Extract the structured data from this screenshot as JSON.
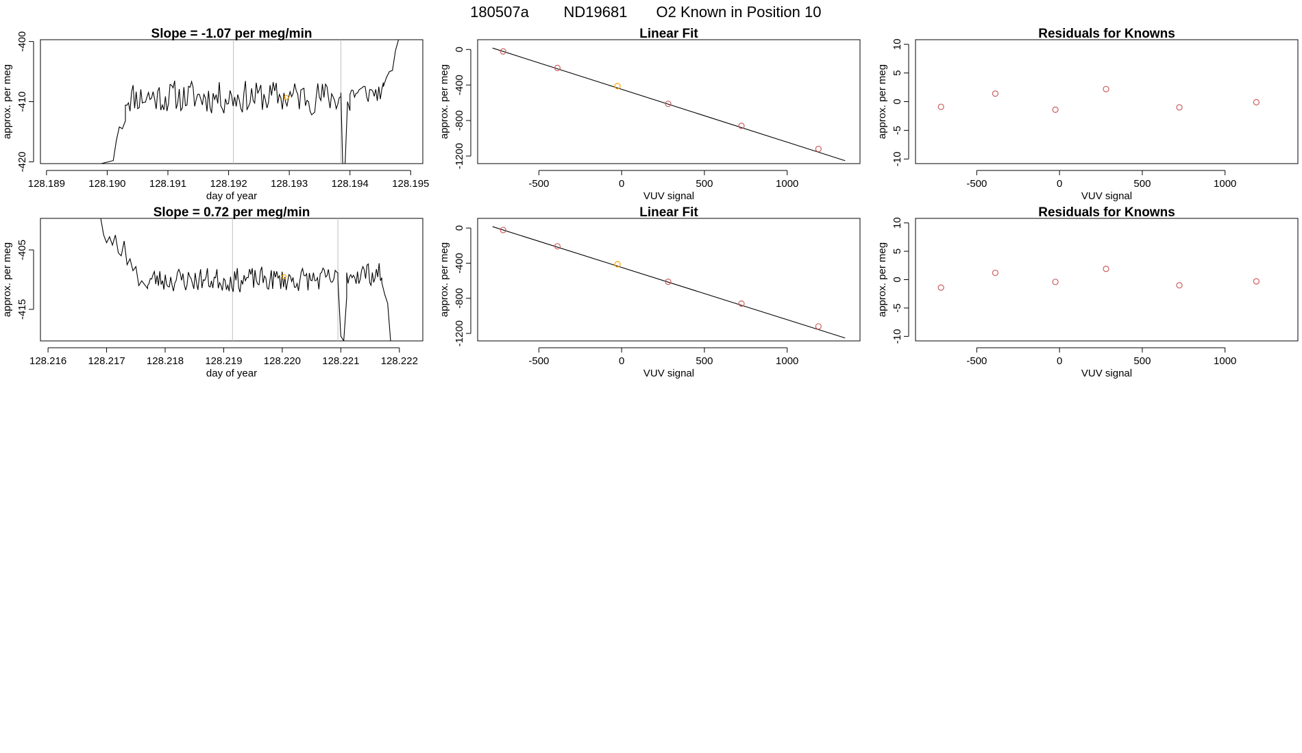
{
  "page_title": {
    "run_id": "180507a",
    "tank_id": "ND19681",
    "description": "O2 Known in Position  10"
  },
  "colors": {
    "line": "#000000",
    "known_point": "#cd5c5c",
    "highlight_point": "#ffa500",
    "vertical_marker": "#bebebe",
    "frame": "#000000"
  },
  "chart_data": [
    {
      "id": "slope-top",
      "type": "line",
      "title": "Slope =  -1.07  per meg/min",
      "xlabel": "day of year",
      "ylabel": "approx. per meg",
      "xlim": [
        128.1889,
        128.1952
      ],
      "ylim": [
        -420.3,
        -399.7
      ],
      "xticks": [
        128.189,
        128.19,
        128.191,
        128.192,
        128.193,
        128.194,
        128.195
      ],
      "xtick_labels": [
        "128.189",
        "128.190",
        "128.191",
        "128.192",
        "128.193",
        "128.194",
        "128.195"
      ],
      "yticks": [
        -400,
        -410,
        -420
      ],
      "ytick_labels": [
        "-400",
        "-410",
        "-420"
      ],
      "vlines": [
        128.19208,
        128.19385
      ],
      "highlight": {
        "x": 128.19295,
        "y": -409.3
      },
      "line_seed": 11,
      "segments": [
        {
          "x": [
            128.1889,
            128.1899
          ],
          "y": [
            -420.3,
            -420.3
          ]
        },
        {
          "x": [
            128.1899,
            128.1901,
            128.19015,
            128.1902,
            128.19025,
            128.1903
          ],
          "y": [
            -420.3,
            -419.8,
            -416.5,
            -414.2,
            -414.5,
            -413.2
          ]
        },
        {
          "gen": true,
          "x0": 128.1903,
          "x1": 128.19385,
          "n": 140,
          "mean": -409.2,
          "amp": 3.1
        },
        {
          "x": [
            128.19385,
            128.19388,
            128.19392,
            128.19396,
            128.194
          ],
          "y": [
            -408.5,
            -420.3,
            -420.3,
            -410.0,
            -411.5
          ]
        },
        {
          "gen": true,
          "x0": 128.194,
          "x1": 128.19455,
          "n": 22,
          "mean": -408.5,
          "amp": 2.0
        },
        {
          "x": [
            128.19455,
            128.1946,
            128.19465,
            128.1947,
            128.19475,
            128.1948
          ],
          "y": [
            -407.5,
            -406.0,
            -405.0,
            -404.8,
            -401.5,
            -399.7
          ]
        }
      ]
    },
    {
      "id": "linear-top",
      "type": "scatter",
      "title": "Linear Fit",
      "xlabel": "VUV signal",
      "ylabel": "approx. per meg",
      "xlim": [
        -870,
        1440
      ],
      "ylim": [
        -1285,
        110
      ],
      "xticks": [
        -500,
        0,
        500,
        1000
      ],
      "xtick_labels": [
        "-500",
        "0",
        "500",
        "1000"
      ],
      "yticks": [
        0,
        -400,
        -800,
        -1200
      ],
      "ytick_labels": [
        "0",
        "-400",
        "-800",
        "-1200"
      ],
      "fit_line": {
        "x": [
          -780,
          1350
        ],
        "y": [
          16,
          -1252
        ]
      },
      "points": [
        {
          "x": -716,
          "y": -22,
          "color": "known"
        },
        {
          "x": -388,
          "y": -208,
          "color": "known"
        },
        {
          "x": -25,
          "y": -412,
          "color": "highlight"
        },
        {
          "x": 281,
          "y": -612,
          "color": "known"
        },
        {
          "x": 724,
          "y": -860,
          "color": "known"
        },
        {
          "x": 1189,
          "y": -1120,
          "color": "known"
        }
      ]
    },
    {
      "id": "resid-top",
      "type": "scatter",
      "title": "Residuals for Knowns",
      "xlabel": "VUV signal",
      "ylabel": "approx. per meg",
      "xlim": [
        -870,
        1440
      ],
      "ylim": [
        -10.8,
        10.8
      ],
      "xticks": [
        -500,
        0,
        500,
        1000
      ],
      "xtick_labels": [
        "-500",
        "0",
        "500",
        "1000"
      ],
      "yticks": [
        10,
        5,
        0,
        -5,
        -10
      ],
      "ytick_labels": [
        "10",
        "5",
        "0",
        "-5",
        "-10"
      ],
      "points": [
        {
          "x": -716,
          "y": -0.9,
          "color": "known"
        },
        {
          "x": -388,
          "y": 1.4,
          "color": "known"
        },
        {
          "x": -25,
          "y": -1.4,
          "color": "known"
        },
        {
          "x": 281,
          "y": 2.2,
          "color": "known"
        },
        {
          "x": 724,
          "y": -1.0,
          "color": "known"
        },
        {
          "x": 1189,
          "y": -0.1,
          "color": "known"
        }
      ]
    },
    {
      "id": "slope-bottom",
      "type": "line",
      "title": "Slope =  0.72  per meg/min",
      "xlabel": "day of year",
      "ylabel": "approx. per meg",
      "xlim": [
        128.21587,
        128.2224
      ],
      "ylim": [
        -420.3,
        -399.7
      ],
      "xticks": [
        128.216,
        128.217,
        128.218,
        128.219,
        128.22,
        128.221,
        128.222
      ],
      "xtick_labels": [
        "128.216",
        "128.217",
        "128.218",
        "128.219",
        "128.220",
        "128.221",
        "128.222"
      ],
      "yticks": [
        -405,
        -415
      ],
      "ytick_labels": [
        "-405",
        "-415"
      ],
      "vlines": [
        128.21915,
        128.22095
      ],
      "highlight": {
        "x": 128.22003,
        "y": -409.5
      },
      "line_seed": 23,
      "segments": [
        {
          "x": [
            128.2169,
            128.21695,
            128.217,
            128.21705,
            128.2171,
            128.21715,
            128.2172,
            128.21725,
            128.2173,
            128.21735,
            128.2174,
            128.21745,
            128.2175,
            128.21755,
            128.2176,
            128.2177
          ],
          "y": [
            -399.7,
            -402.5,
            -403.8,
            -402.8,
            -404.2,
            -402.5,
            -405.5,
            -406.0,
            -403.5,
            -407.5,
            -406.5,
            -408.5,
            -407.8,
            -411.0,
            -410.2,
            -411.5
          ]
        },
        {
          "gen": true,
          "x0": 128.2177,
          "x1": 128.22095,
          "n": 140,
          "mean": -410.0,
          "amp": 2.3
        },
        {
          "x": [
            128.22095,
            128.221,
            128.22105,
            128.2211
          ],
          "y": [
            -410.0,
            -419.5,
            -420.3,
            -413.0
          ]
        },
        {
          "gen": true,
          "x0": 128.2211,
          "x1": 128.2217,
          "n": 26,
          "mean": -409.0,
          "amp": 2.2
        },
        {
          "x": [
            128.2217,
            128.22175,
            128.2218,
            128.22185
          ],
          "y": [
            -410.5,
            -412.5,
            -414.0,
            -420.3
          ]
        }
      ]
    },
    {
      "id": "linear-bottom",
      "type": "scatter",
      "title": "Linear Fit",
      "xlabel": "VUV signal",
      "ylabel": "approx. per meg",
      "xlim": [
        -870,
        1440
      ],
      "ylim": [
        -1285,
        110
      ],
      "xticks": [
        -500,
        0,
        500,
        1000
      ],
      "xtick_labels": [
        "-500",
        "0",
        "500",
        "1000"
      ],
      "yticks": [
        0,
        -400,
        -800,
        -1200
      ],
      "ytick_labels": [
        "0",
        "-400",
        "-800",
        "-1200"
      ],
      "fit_line": {
        "x": [
          -780,
          1350
        ],
        "y": [
          16,
          -1252
        ]
      },
      "points": [
        {
          "x": -716,
          "y": -22,
          "color": "known"
        },
        {
          "x": -388,
          "y": -208,
          "color": "known"
        },
        {
          "x": -25,
          "y": -412,
          "color": "highlight"
        },
        {
          "x": 281,
          "y": -612,
          "color": "known"
        },
        {
          "x": 724,
          "y": -860,
          "color": "known"
        },
        {
          "x": 1189,
          "y": -1120,
          "color": "known"
        }
      ]
    },
    {
      "id": "resid-bottom",
      "type": "scatter",
      "title": "Residuals for Knowns",
      "xlabel": "VUV signal",
      "ylabel": "approx. per meg",
      "xlim": [
        -870,
        1440
      ],
      "ylim": [
        -10.8,
        10.8
      ],
      "xticks": [
        -500,
        0,
        500,
        1000
      ],
      "xtick_labels": [
        "-500",
        "0",
        "500",
        "1000"
      ],
      "yticks": [
        10,
        5,
        0,
        -5,
        -10
      ],
      "ytick_labels": [
        "10",
        "5",
        "0",
        "-5",
        "-10"
      ],
      "points": [
        {
          "x": -716,
          "y": -1.4,
          "color": "known"
        },
        {
          "x": -388,
          "y": 1.2,
          "color": "known"
        },
        {
          "x": -25,
          "y": -0.4,
          "color": "known"
        },
        {
          "x": 281,
          "y": 1.9,
          "color": "known"
        },
        {
          "x": 724,
          "y": -1.0,
          "color": "known"
        },
        {
          "x": 1189,
          "y": -0.3,
          "color": "known"
        }
      ]
    }
  ]
}
